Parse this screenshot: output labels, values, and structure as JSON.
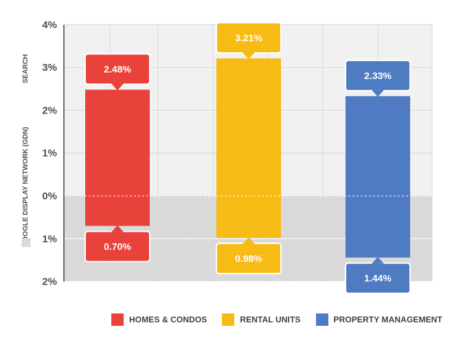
{
  "chart_data": {
    "type": "bar",
    "categories": [
      "HOMES & CONDOS",
      "RENTAL UNITS",
      "PROPERTY MANAGEMENT"
    ],
    "series": [
      {
        "name": "SEARCH",
        "values": [
          2.48,
          3.21,
          2.33
        ],
        "labels": [
          "2.48%",
          "3.21%",
          "2.33%"
        ]
      },
      {
        "name": "GOOGLE DISPLAY NETWORK (GDN)",
        "values": [
          0.7,
          0.98,
          1.44
        ],
        "labels": [
          "0.70%",
          "0.98%",
          "1.44%"
        ]
      }
    ],
    "colors": [
      "#e8423a",
      "#f7bb16",
      "#4f7bc2"
    ],
    "y_ticks_upper": [
      "4%",
      "3%",
      "2%",
      "1%",
      "0%"
    ],
    "y_ticks_lower": [
      "1%",
      "2%"
    ],
    "ylim_upper": [
      0,
      4
    ],
    "ylim_lower": [
      0,
      2
    ],
    "upper_axis_label": "SEARCH",
    "lower_axis_label": "GOOGLE DISPLAY NETWORK (GDN)",
    "grid": true,
    "legend_position": "bottom"
  }
}
